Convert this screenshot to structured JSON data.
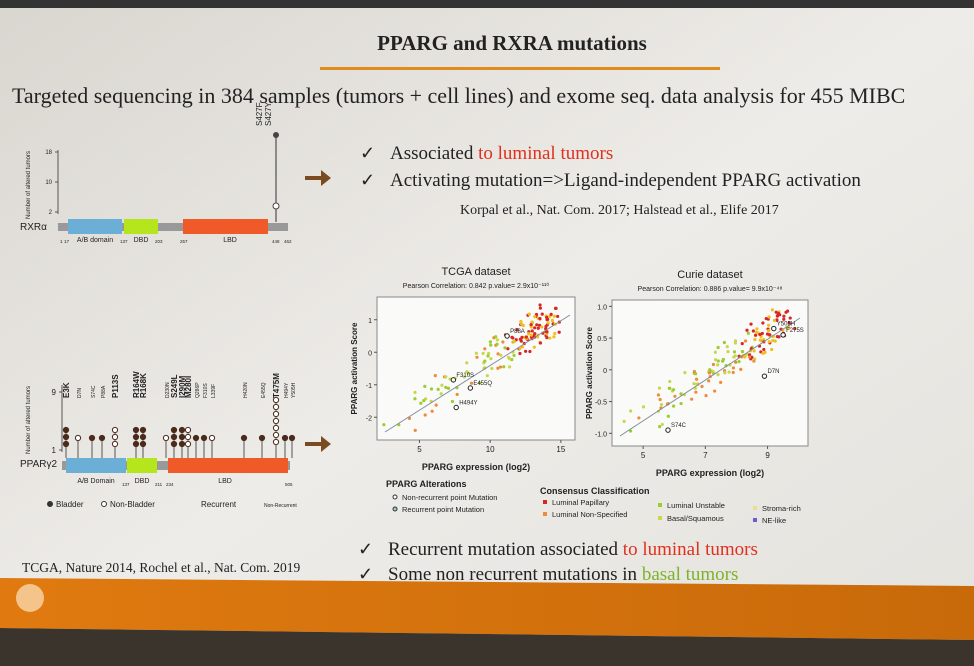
{
  "header": {
    "title": "PPARG and RXRA mutations",
    "subtitle": "Targeted sequencing in 384 samples (tumors + cell lines) and exome seq. data analysis for 455 MIBC"
  },
  "rxra": {
    "y_label": "Number of altered tumors",
    "yticks": [
      2,
      10,
      18
    ],
    "protein": "RXRα",
    "domains": [
      "A/B domain",
      "DBD",
      "LBD"
    ],
    "positions": [
      "1",
      "17",
      "137",
      "203",
      "257",
      "448",
      "462"
    ],
    "mutation_labels": [
      "S427F",
      "S427Y"
    ]
  },
  "top_bullets": [
    {
      "text": "Associated ",
      "highlight": "to luminal tumors"
    },
    {
      "text": "Activating mutation=>Ligand-independent PPARG activation"
    }
  ],
  "citation": "Korpal et al., Nat. Com. 2017; Halstead et al., Elife 2017",
  "pparg": {
    "y_label": "Number of altered tumors",
    "yticks": [
      1,
      9
    ],
    "protein": "PPARγ2",
    "domains": [
      "A/B Domain",
      "DBD",
      "LBD"
    ],
    "positions": [
      "137",
      "211",
      "234",
      "505"
    ],
    "mutation_labels": [
      "E3K",
      "D7N",
      "S74C",
      "P88A",
      "P113S",
      "R164W",
      "R168K",
      "D230N",
      "S249L",
      "I290M",
      "M280I",
      "Q286P",
      "F310S",
      "L339F",
      "H420N",
      "E455Q",
      "T475M",
      "H494Y",
      "Y505H"
    ],
    "legend": [
      "Bladder",
      "Non-Bladder",
      "Recurrent",
      "Non-Recurrent"
    ]
  },
  "tcga": {
    "title": "TCGA dataset",
    "subtitle": "Pearson Correlation: 0.842 p.value= 2.9x10⁻¹¹⁰",
    "x_label": "PPARG expression (log2)",
    "y_label": "PPARG activation Score",
    "xlim": [
      2,
      16
    ],
    "ylim": [
      -2.7,
      1.7
    ],
    "xticks": [
      5,
      10,
      15
    ],
    "yticks": [
      -2,
      -1,
      0,
      1
    ],
    "points": [
      {
        "label": "F310S",
        "x": 7.4,
        "y": -0.85
      },
      {
        "label": "E455Q",
        "x": 8.6,
        "y": -1.1
      },
      {
        "label": "H494Y",
        "x": 7.6,
        "y": -1.7
      },
      {
        "label": "P88A",
        "x": 11.2,
        "y": 0.5
      }
    ]
  },
  "curie": {
    "title": "Curie dataset",
    "subtitle": "Pearson Correlation: 0.886 p.value= 9.9x10⁻⁴⁸",
    "x_label": "PPARG expression (log2)",
    "y_label": "PPARG activation Score",
    "xlim": [
      4,
      10.3
    ],
    "ylim": [
      -1.2,
      1.1
    ],
    "xticks": [
      5,
      7,
      9
    ],
    "yticks": [
      {
        "value": -1,
        "label": "-1.0"
      },
      -0.5,
      0,
      0.5,
      {
        "value": 1,
        "label": "1.0"
      }
    ],
    "points": [
      {
        "label": "Y505H",
        "x": 9.2,
        "y": 0.65
      },
      {
        "label": "F275S",
        "x": 9.5,
        "y": 0.55
      },
      {
        "label": "D7N",
        "x": 8.9,
        "y": -0.1
      },
      {
        "label": "S74C",
        "x": 5.8,
        "y": -0.95
      }
    ]
  },
  "alterations": {
    "title": "PPARG Alterations",
    "items": [
      "Non-recurrent point Mutation",
      "Recurrent point Mutation"
    ]
  },
  "classification": {
    "title": "Consensus Classification",
    "items": [
      {
        "label": "Luminal Papillary",
        "color": "#d62728"
      },
      {
        "label": "Luminal Non-Specified",
        "color": "#f08a3c"
      },
      {
        "label": "Luminal Unstable",
        "color": "#9acd32"
      },
      {
        "label": "Basal/Squamous",
        "color": "#c8d84a"
      },
      {
        "label": "Stroma-rich",
        "color": "#e8e090"
      },
      {
        "label": "NE-like",
        "color": "#6a5acd"
      }
    ]
  },
  "bottom_bullets": [
    {
      "text": "Recurrent mutation associated ",
      "highlight": "to luminal tumors"
    },
    {
      "text": "Some non recurrent mutations in ",
      "highlight": "basal tumors"
    }
  ],
  "reference": "TCGA, Nature 2014, Rochel et al., Nat. Com. 2019"
}
